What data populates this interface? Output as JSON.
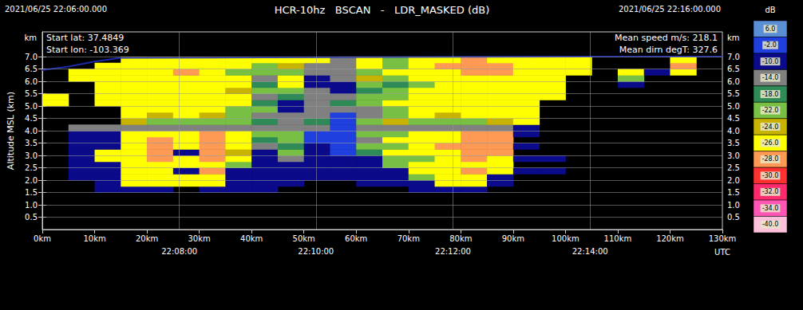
{
  "chart_data": {
    "type": "heatmap",
    "title": "HCR-10hz   BSCAN   -   LDR_MASKED (dB)",
    "start_time": "2021/06/25 22:06:00.000",
    "end_time": "2021/06/25 22:16:00.000",
    "annotations_left": [
      "Start lat: 37.4849",
      "Start lon: -103.369"
    ],
    "annotations_right": [
      "Mean speed m/s: 218.1",
      "Mean dirn degT: 327.6"
    ],
    "ylabel": "Altitude MSL (km)",
    "y_unit": "km",
    "x2label": "UTC",
    "grid": true,
    "xlim": [
      0,
      130
    ],
    "xticks": [
      {
        "value": 0,
        "label": "0km"
      },
      {
        "value": 10,
        "label": "10km"
      },
      {
        "value": 20,
        "label": "20km"
      },
      {
        "value": 30,
        "label": "30km"
      },
      {
        "value": 40,
        "label": "40km"
      },
      {
        "value": 50,
        "label": "50km"
      },
      {
        "value": 60,
        "label": "60km"
      },
      {
        "value": 70,
        "label": "70km"
      },
      {
        "value": 80,
        "label": "80km"
      },
      {
        "value": 90,
        "label": "90km"
      },
      {
        "value": 100,
        "label": "100km"
      },
      {
        "value": 110,
        "label": "110km"
      },
      {
        "value": 120,
        "label": "120km"
      },
      {
        "value": 130,
        "label": "130km"
      }
    ],
    "x2lim": [
      0,
      130
    ],
    "x2ticks": [
      {
        "value": 26.2,
        "label": "22:08:00"
      },
      {
        "value": 52.3,
        "label": "22:10:00"
      },
      {
        "value": 78.5,
        "label": "22:12:00"
      },
      {
        "value": 104.7,
        "label": "22:14:00"
      }
    ],
    "ylim": [
      0,
      8
    ],
    "yticks": [
      0.5,
      {
        "value": 1,
        "label": "1.0"
      },
      1.5,
      {
        "value": 2,
        "label": "2.0"
      },
      2.5,
      {
        "value": 3,
        "label": "3.0"
      },
      3.5,
      {
        "value": 4,
        "label": "4.0"
      },
      4.5,
      {
        "value": 5,
        "label": "5.0"
      },
      5.5,
      {
        "value": 6,
        "label": "6.0"
      },
      6.5,
      {
        "value": 7,
        "label": "7.0"
      }
    ],
    "y2lim": [
      0,
      8
    ],
    "y2ticks": [
      0.5,
      {
        "value": 1,
        "label": "1.0"
      },
      1.5,
      {
        "value": 2,
        "label": "2.0"
      },
      2.5,
      {
        "value": 3,
        "label": "3.0"
      },
      3.5,
      {
        "value": 4,
        "label": "4.0"
      },
      4.5,
      {
        "value": 5,
        "label": "5.0"
      },
      5.5,
      {
        "value": 6,
        "label": "6.0"
      },
      6.5,
      {
        "value": 7,
        "label": "7.0"
      }
    ],
    "x_bins": [
      0,
      5,
      10,
      15,
      20,
      25,
      30,
      35,
      40,
      45,
      50,
      55,
      60,
      65,
      70,
      75,
      80,
      85,
      90,
      95,
      100,
      105,
      110,
      115,
      120,
      125,
      130
    ],
    "y_bins": [
      1.5,
      1.75,
      2.0,
      2.25,
      2.5,
      2.75,
      3.0,
      3.25,
      3.5,
      3.75,
      4.0,
      4.25,
      4.5,
      4.75,
      5.0,
      5.25,
      5.5,
      5.75,
      6.0,
      6.25,
      6.5,
      6.75,
      7.0
    ],
    "cells": [
      [
        null,
        null,
        -6,
        -6,
        -6,
        null,
        -6,
        -6,
        -6,
        null,
        null,
        null,
        null,
        null,
        -6,
        -6,
        -6,
        null,
        null,
        null,
        null,
        null,
        null,
        null,
        null,
        null
      ],
      [
        null,
        null,
        -6,
        -25,
        -25,
        -25,
        -25,
        -6,
        -6,
        -6,
        null,
        null,
        -6,
        -6,
        -6,
        -25,
        -25,
        -6,
        null,
        null,
        null,
        null,
        null,
        null,
        null,
        null
      ],
      [
        null,
        -6,
        -6,
        -25,
        -25,
        -25,
        -25,
        -6,
        -6,
        -6,
        -6,
        -6,
        -6,
        -6,
        -20,
        -25,
        -25,
        -6,
        null,
        null,
        null,
        null,
        null,
        null,
        null,
        null
      ],
      [
        null,
        -6,
        -6,
        -25,
        -25,
        -6,
        -27,
        -6,
        -6,
        -6,
        -6,
        -6,
        -6,
        -6,
        -25,
        -25,
        -27,
        -25,
        -6,
        -6,
        null,
        null,
        null,
        null,
        null,
        null
      ],
      [
        null,
        -6,
        -6,
        -25,
        -25,
        -25,
        -25,
        -20,
        -6,
        -6,
        -6,
        -6,
        -6,
        -20,
        -25,
        -25,
        -25,
        -25,
        null,
        null,
        null,
        null,
        null,
        null,
        null,
        null
      ],
      [
        null,
        -6,
        -25,
        -25,
        -27,
        -25,
        -27,
        -25,
        -6,
        -12,
        -6,
        -6,
        -6,
        -20,
        -20,
        -25,
        -27,
        -25,
        -6,
        -6,
        null,
        null,
        null,
        null,
        null,
        null
      ],
      [
        null,
        -6,
        -25,
        -25,
        -27,
        -6,
        -27,
        -23,
        -6,
        -20,
        -6,
        0,
        -16,
        -25,
        -25,
        -25,
        -27,
        -27,
        null,
        null,
        null,
        null,
        null,
        null,
        null,
        null
      ],
      [
        null,
        -6,
        -6,
        -25,
        -27,
        -25,
        -27,
        -25,
        -12,
        -16,
        -6,
        0,
        -20,
        -20,
        -25,
        -27,
        -27,
        -27,
        -6,
        null,
        null,
        null,
        null,
        null,
        null,
        null
      ],
      [
        null,
        -6,
        -6,
        -25,
        -27,
        -25,
        -27,
        -25,
        -16,
        -20,
        0,
        0,
        -12,
        -25,
        -25,
        -25,
        -27,
        -27,
        null,
        null,
        null,
        null,
        null,
        null,
        null,
        null
      ],
      [
        null,
        -6,
        -6,
        -25,
        -25,
        -25,
        -27,
        -25,
        -20,
        -20,
        0,
        0,
        -20,
        -20,
        -25,
        -25,
        -27,
        -27,
        -6,
        null,
        null,
        null,
        null,
        null,
        null,
        null
      ],
      [
        null,
        -12,
        -12,
        -12,
        -12,
        -12,
        -12,
        -12,
        -12,
        -12,
        -12,
        0,
        -12,
        -12,
        -12,
        -12,
        -12,
        -12,
        -6,
        null,
        null,
        null,
        null,
        null,
        null,
        null
      ],
      [
        null,
        null,
        null,
        -23,
        -20,
        -20,
        -20,
        -20,
        -16,
        -12,
        -16,
        0,
        -20,
        -23,
        -20,
        -20,
        -20,
        -23,
        -25,
        null,
        null,
        null,
        null,
        null,
        null,
        null
      ],
      [
        null,
        null,
        null,
        -25,
        -23,
        -25,
        -23,
        -20,
        -12,
        -12,
        -12,
        0,
        -12,
        -20,
        -25,
        -23,
        -25,
        -25,
        -25,
        null,
        null,
        null,
        null,
        null,
        null,
        null
      ],
      [
        null,
        null,
        null,
        -25,
        -25,
        -25,
        -25,
        -20,
        -20,
        -6,
        -12,
        -12,
        -12,
        -20,
        -25,
        -25,
        -25,
        -25,
        -25,
        null,
        null,
        null,
        null,
        null,
        null,
        null
      ],
      [
        -25,
        null,
        -25,
        -25,
        -25,
        -25,
        -25,
        -25,
        -16,
        -6,
        -12,
        -16,
        -20,
        -25,
        -25,
        -25,
        -25,
        -25,
        -25,
        null,
        null,
        null,
        null,
        null,
        null,
        null
      ],
      [
        -25,
        null,
        -25,
        -25,
        -25,
        -25,
        -25,
        -25,
        -12,
        -16,
        -12,
        -12,
        -20,
        -20,
        -25,
        -25,
        -25,
        -25,
        -25,
        -25,
        null,
        null,
        null,
        null,
        null,
        null
      ],
      [
        null,
        null,
        -25,
        -25,
        -25,
        -25,
        -25,
        -23,
        -20,
        -20,
        -12,
        -6,
        -16,
        -20,
        -25,
        -25,
        -25,
        -25,
        -25,
        -25,
        null,
        null,
        null,
        null,
        null,
        null
      ],
      [
        null,
        null,
        -25,
        -25,
        -25,
        -25,
        -25,
        -25,
        -16,
        -25,
        -6,
        -6,
        -20,
        -16,
        -20,
        -25,
        -25,
        -25,
        -25,
        -25,
        null,
        null,
        -6,
        null,
        null,
        null
      ],
      [
        null,
        -25,
        -25,
        -25,
        -25,
        -25,
        -25,
        -25,
        -12,
        -25,
        -6,
        -12,
        -23,
        -20,
        -25,
        -25,
        -25,
        -25,
        -25,
        -25,
        null,
        null,
        -20,
        null,
        null,
        null
      ],
      [
        null,
        -25,
        -25,
        -25,
        -25,
        -27,
        -25,
        -20,
        -20,
        -20,
        -12,
        -12,
        -20,
        -25,
        -25,
        -25,
        -27,
        -27,
        -25,
        -25,
        -25,
        null,
        -25,
        -6,
        -25,
        null
      ],
      [
        null,
        null,
        -25,
        -25,
        -25,
        -25,
        -25,
        -25,
        -20,
        -23,
        -12,
        -12,
        -25,
        -20,
        -25,
        -27,
        -27,
        -27,
        -25,
        -25,
        -25,
        null,
        null,
        null,
        -27,
        null
      ],
      [
        null,
        null,
        null,
        -25,
        -25,
        -25,
        -25,
        -25,
        -25,
        -25,
        -25,
        -12,
        -25,
        -20,
        -25,
        -25,
        -27,
        -25,
        -25,
        -25,
        -25,
        null,
        null,
        null,
        -25,
        null
      ]
    ],
    "color_bar": {
      "title": "dB",
      "levels": [
        {
          "value": 6,
          "label": "6.0"
        },
        {
          "value": -2,
          "label": "-2.0"
        },
        {
          "value": -10,
          "label": "-10.0"
        },
        {
          "value": -14,
          "label": "-14.0"
        },
        {
          "value": -18,
          "label": "-18.0"
        },
        {
          "value": -22,
          "label": "-22.0"
        },
        {
          "value": -24,
          "label": "-24.0"
        },
        {
          "value": -26,
          "label": "-26.0"
        },
        {
          "value": -28,
          "label": "-28.0"
        },
        {
          "value": -30,
          "label": "-30.0"
        },
        {
          "value": -32,
          "label": "-32.0"
        },
        {
          "value": -34,
          "label": "-34.0"
        },
        {
          "value": -40,
          "label": "-40.0"
        }
      ],
      "colors": [
        "#5a8fd6",
        "#1f3fdf",
        "#0a0a8a",
        "#808080",
        "#2e8b57",
        "#77c043",
        "#c8b400",
        "#ffff00",
        "#ff9a55",
        "#ff3030",
        "#ff2a6e",
        "#ff55b5",
        "#ffc0dc"
      ]
    },
    "altitude_line": {
      "x": [
        0,
        5,
        10,
        15,
        105,
        130
      ],
      "values": [
        6.45,
        6.6,
        6.8,
        6.95,
        7.0,
        7.0
      ],
      "color": "#1a2aa8"
    }
  }
}
